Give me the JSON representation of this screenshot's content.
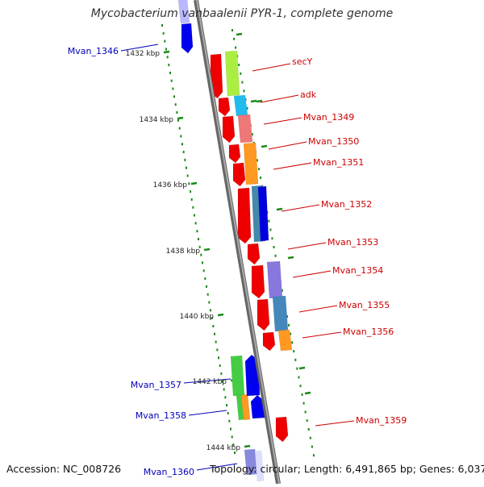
{
  "title": "Mycobacterium vanbaalenii PYR-1, complete genome",
  "footer": {
    "accession": "Accession: NC_008726",
    "summary": "Topology: circular; Length: 6,491,865 bp; Genes: 6,037"
  },
  "colors": {
    "backbone": "#8c8c8c",
    "tick": "#1a8a1a",
    "label_red": "#cc0000",
    "label_blue": "#0000bb",
    "gene_red": "#ee0000",
    "gene_blue": "#0000ee"
  },
  "ticks": [
    {
      "label": "1432 kbp"
    },
    {
      "label": "1434 kbp"
    },
    {
      "label": "1436 kbp"
    },
    {
      "label": "1438 kbp"
    },
    {
      "label": "1440 kbp"
    },
    {
      "label": "1442 kbp"
    },
    {
      "label": "1444 kbp"
    }
  ],
  "labels_right": [
    "secY",
    "adk",
    "Mvan_1349",
    "Mvan_1350",
    "Mvan_1351",
    "Mvan_1352",
    "Mvan_1353",
    "Mvan_1354",
    "Mvan_1355",
    "Mvan_1356",
    "Mvan_1359"
  ],
  "labels_left": [
    "Mvan_1346",
    "Mvan_1357",
    "Mvan_1358",
    "Mvan_1360"
  ]
}
